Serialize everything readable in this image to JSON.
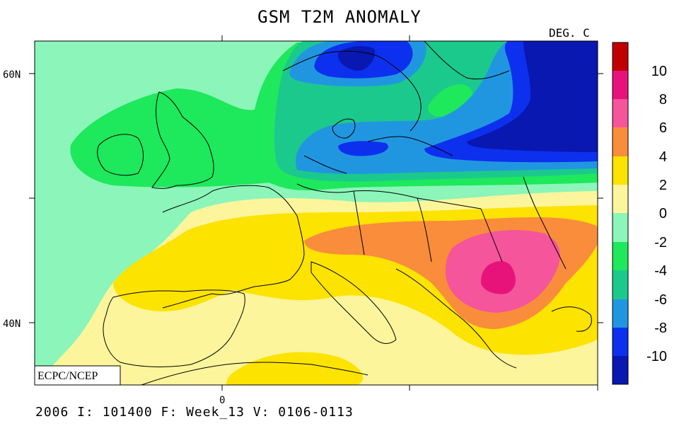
{
  "title": "GSM T2M ANOMALY",
  "units": "DEG. C",
  "credit": "ECPC/NCEP",
  "footer": "2006 I: 101400 F: Week_13 V: 0106-0113",
  "axis": {
    "lat_labels": [
      "60N",
      "40N"
    ],
    "lon_labels": [
      "0"
    ]
  },
  "colorbar": {
    "labels": [
      "10",
      "8",
      "6",
      "4",
      "2",
      "0",
      "-2",
      "-4",
      "-6",
      "-8",
      "-10"
    ],
    "colors": [
      "#c00000",
      "#e8137a",
      "#f5559a",
      "#f98d3c",
      "#fde300",
      "#fdf59c",
      "#8cf5b9",
      "#1ee85c",
      "#1bc98c",
      "#2196e0",
      "#0d30ee",
      "#0818b0"
    ]
  },
  "palette": {
    "ocean_default": "#8cf5b9",
    "border_color": "#000000"
  }
}
